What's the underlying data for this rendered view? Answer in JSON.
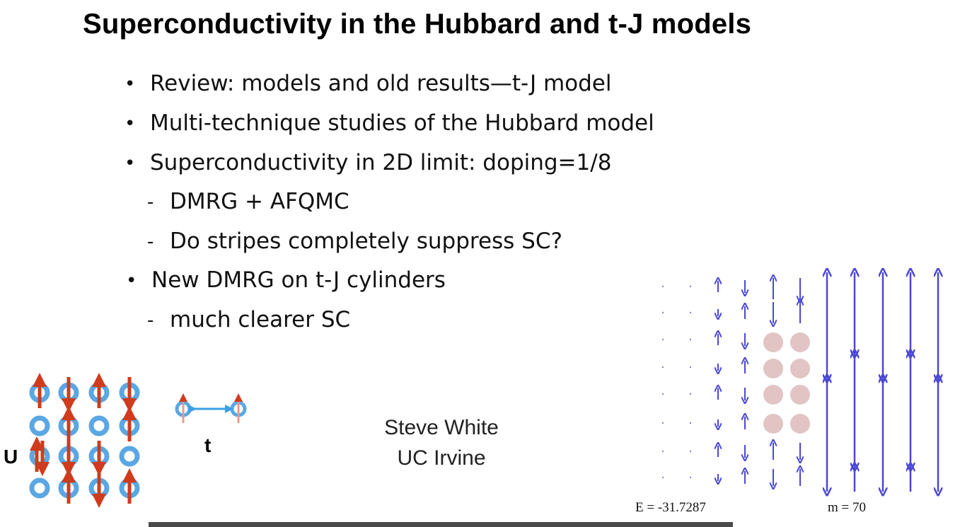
{
  "slide": {
    "title": "Superconductivity in the Hubbard and t-J models",
    "bullets": [
      {
        "marker": "•",
        "text": "Review: models and old results—t-J model"
      },
      {
        "marker": "•",
        "text": "Multi-technique studies of the Hubbard model"
      },
      {
        "marker": "•",
        "text": "Superconductivity in 2D limit:  doping=1/8"
      },
      {
        "marker": "-",
        "text": "DMRG + AFQMC"
      },
      {
        "marker": "-",
        "text": "Do stripes completely suppress SC?"
      },
      {
        "marker": "•",
        "text": "New DMRG on t-J cylinders"
      },
      {
        "marker": "-",
        "text": "much clearer SC"
      }
    ],
    "author": "Steve White",
    "affiliation": "UC Irvine",
    "hubbard_figure": {
      "u_label": "U",
      "t_label": "t",
      "site_color": "#5aa7e3",
      "spin_color": "#cf3b1c",
      "hop_color": "#3aa0e6"
    },
    "dmrg_figure": {
      "energy_label": "E =  -31.7287",
      "m_label": "m =  70",
      "arrow_color": "#4a47d4",
      "hole_color": "#e2c4c4"
    }
  }
}
